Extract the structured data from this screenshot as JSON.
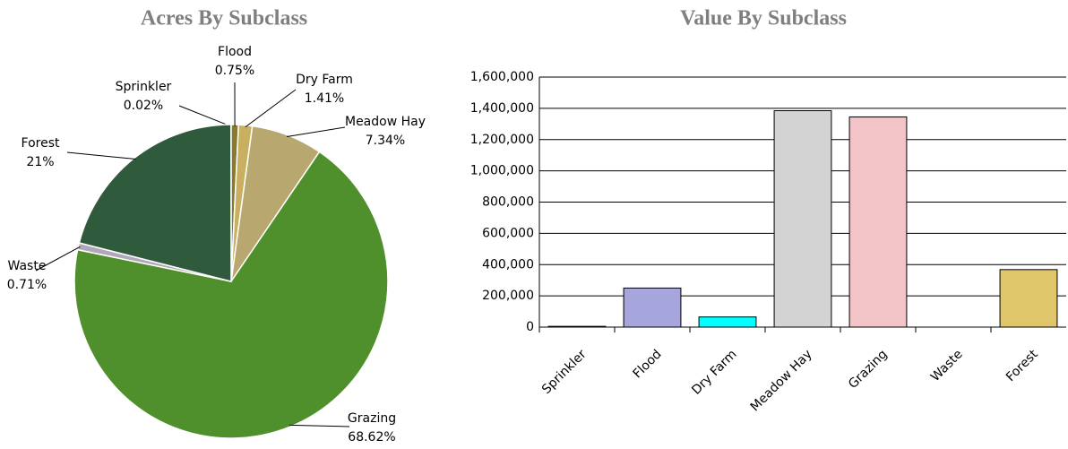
{
  "chart_data": [
    {
      "type": "pie",
      "title": "Acres By Subclass",
      "categories": [
        "Sprinkler",
        "Flood",
        "Dry Farm",
        "Meadow Hay",
        "Grazing",
        "Waste",
        "Forest"
      ],
      "values": [
        0.02,
        0.75,
        1.41,
        7.34,
        68.62,
        0.71,
        21
      ],
      "value_labels": [
        "0.02%",
        "0.75%",
        "1.41%",
        "7.34%",
        "68.62%",
        "0.71%",
        "21%"
      ],
      "colors": [
        "#d8d8d8",
        "#8a7a30",
        "#c8b060",
        "#b8a870",
        "#4f8f2c",
        "#b0a8b8",
        "#2f5a3c"
      ]
    },
    {
      "type": "bar",
      "title": "Value By Subclass",
      "categories": [
        "Sprinkler",
        "Flood",
        "Dry Farm",
        "Meadow Hay",
        "Grazing",
        "Waste",
        "Forest"
      ],
      "values": [
        5000,
        250000,
        65000,
        1385000,
        1345000,
        0,
        368000
      ],
      "colors": [
        "#1a1a5a",
        "#a6a6dd",
        "#00ffff",
        "#d3d3d3",
        "#f2c4c8",
        "#ffffff",
        "#dfc66a"
      ],
      "ylim": [
        0,
        1600000
      ],
      "yticks": [
        0,
        {
          "value": 200000,
          "label": "200,000"
        },
        {
          "value": 400000,
          "label": "400,000"
        },
        {
          "value": 600000,
          "label": "600,000"
        },
        {
          "value": 800000,
          "label": "800,000"
        },
        {
          "value": 1000000,
          "label": "1,000,000"
        },
        {
          "value": 1200000,
          "label": "1,200,000"
        },
        {
          "value": 1400000,
          "label": "1,400,000"
        },
        {
          "value": 1600000,
          "label": "1,600,000"
        }
      ],
      "grid": true
    }
  ]
}
